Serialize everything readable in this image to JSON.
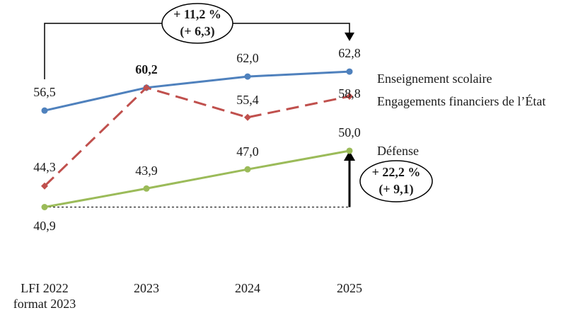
{
  "chart_data": {
    "type": "line",
    "categories": [
      "LFI 2022\nformat 2023",
      "2023",
      "2024",
      "2025"
    ],
    "series": [
      {
        "name": "Enseignement scolaire",
        "values": [
          56.5,
          60.2,
          62.0,
          62.8
        ],
        "labels": [
          "56,5",
          "60,2",
          "62,0",
          "62,8"
        ],
        "color": "#4f81bd",
        "dash": "solid"
      },
      {
        "name": "Engagements financiers de l’État",
        "values": [
          44.3,
          60.2,
          55.4,
          58.8
        ],
        "labels": [
          "44,3",
          "",
          "55,4",
          "58,8"
        ],
        "color": "#c0504d",
        "dash": "dashed"
      },
      {
        "name": "Défense",
        "values": [
          40.9,
          43.9,
          47.0,
          50.0
        ],
        "labels": [
          "40,9",
          "43,9",
          "47,0",
          "50,0"
        ],
        "color": "#9bbb59",
        "dash": "solid"
      }
    ],
    "annotations": [
      {
        "line1": "+ 11,2 %",
        "line2": "(+ 6,3)"
      },
      {
        "line1": "+ 22,2 %",
        "line2": "(+ 9,1)"
      }
    ],
    "xlabel": "",
    "ylabel": "",
    "grid": false,
    "legend": "right, labels at line ends"
  }
}
